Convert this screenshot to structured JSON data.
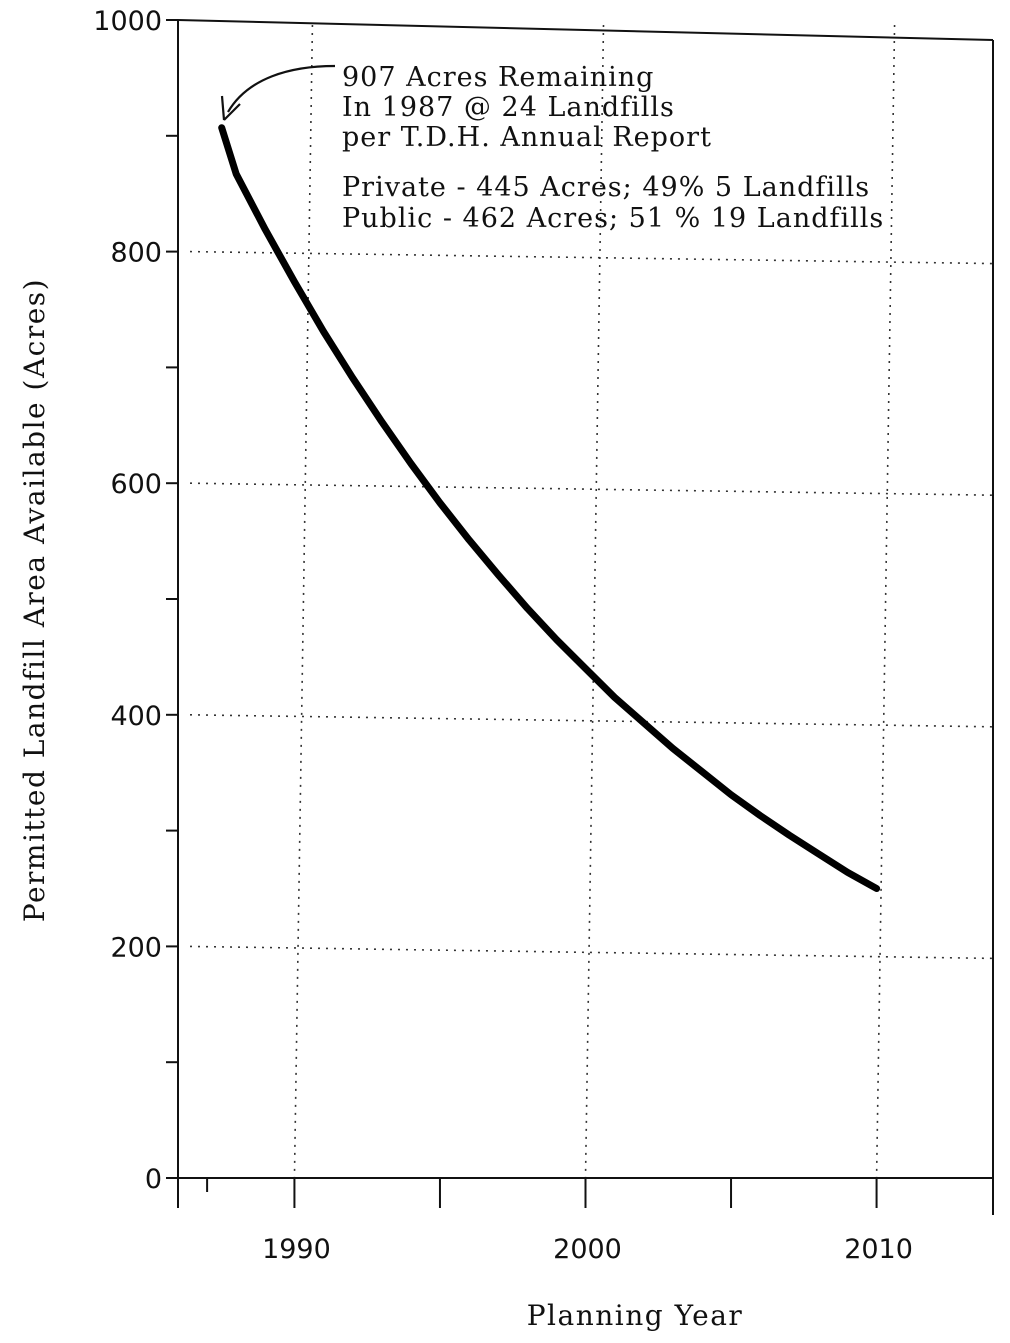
{
  "chart_data": {
    "type": "line",
    "title": "",
    "xlabel": "Planning Year",
    "ylabel": "Permitted Landfill Area Available (Acres)",
    "xlim": [
      1986,
      2014
    ],
    "ylim": [
      0,
      1000
    ],
    "x_ticks": [
      1990,
      2000,
      2010
    ],
    "y_ticks": [
      0,
      200,
      400,
      600,
      800,
      1000
    ],
    "grid": true,
    "series": [
      {
        "x": [
          1987.5,
          1988,
          1989,
          1990,
          1991,
          1992,
          1993,
          1994,
          1995,
          1996,
          1997,
          1998,
          1999,
          2000,
          2001,
          2002,
          2003,
          2004,
          2005,
          2006,
          2007,
          2008,
          2009,
          2010
        ],
        "values": [
          907,
          867,
          819,
          774,
          731,
          691,
          653,
          617,
          583,
          551,
          521,
          492,
          465,
          440,
          415,
          393,
          371,
          351,
          331,
          313,
          296,
          280,
          264,
          250
        ]
      }
    ],
    "annotations": [
      {
        "lines": [
          "907 Acres Remaining",
          "In 1987 @ 24 Landfills",
          "per T.D.H. Annual Report"
        ],
        "points_to": {
          "x": 1987.5,
          "y": 907
        }
      },
      {
        "lines": [
          "Private - 445 Acres; 49% 5 Landfills",
          "Public - 462 Acres; 51 % 19 Landfills"
        ]
      }
    ]
  }
}
